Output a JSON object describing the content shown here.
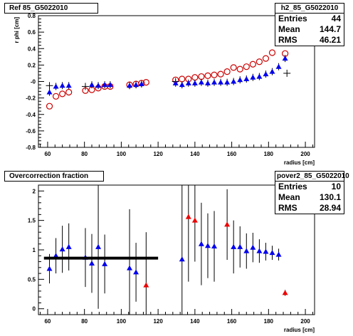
{
  "top_panel": {
    "title": "Ref 85_G5022010",
    "stats": {
      "name": "h2_85_G5022010",
      "rows": [
        {
          "label": "Entries",
          "value": "44"
        },
        {
          "label": "Mean",
          "value": "144.7"
        },
        {
          "label": "RMS",
          "value": "46.21"
        }
      ]
    }
  },
  "bottom_panel": {
    "title": "Overcorrection fraction",
    "stats": {
      "name": "pover2_85_G5022010",
      "rows": [
        {
          "label": "Entries",
          "value": "10"
        },
        {
          "label": "Mean",
          "value": "130.1"
        },
        {
          "label": "RMS",
          "value": "28.94"
        }
      ]
    }
  },
  "colors": {
    "circles": "#cc0000",
    "blue": "#0000ee",
    "red": "#ee0000",
    "line": "#000000"
  },
  "chart_data": [
    {
      "type": "scatter",
      "title": "Ref 85_G5022010",
      "xlabel": "radius [cm]",
      "ylabel": "r phi [cm]",
      "xlim": [
        55,
        205
      ],
      "ylim": [
        -0.8,
        0.8
      ],
      "xticks": [
        60,
        80,
        100,
        120,
        140,
        160,
        180,
        200
      ],
      "yticks": [
        -0.8,
        -0.6,
        -0.4,
        -0.2,
        0,
        0.2,
        0.4,
        0.6,
        0.8
      ],
      "tick_labels_x": [
        "60",
        "80",
        "100",
        "120",
        "140",
        "160",
        "180",
        "200"
      ],
      "tick_labels_y": [
        "-0.8",
        "-0.6",
        "-0.4",
        "-0.2",
        "-0",
        "0.2",
        "0.4",
        "0.6",
        "0.8"
      ],
      "series": [
        {
          "marker": "open-circle",
          "x": [
            61,
            64.5,
            68,
            71.5,
            80.5,
            84,
            87.5,
            91,
            94,
            104.5,
            108,
            111,
            113.5,
            129.5,
            133,
            136.5,
            140,
            143.5,
            147,
            150.5,
            154,
            157.5,
            161,
            164.5,
            168,
            171.5,
            175,
            178.5,
            182,
            185.5,
            189
          ],
          "y": [
            -0.3,
            -0.18,
            -0.15,
            -0.13,
            -0.11,
            -0.1,
            -0.08,
            -0.06,
            -0.06,
            -0.04,
            -0.03,
            -0.02,
            -0.01,
            0.02,
            0.03,
            0.03,
            0.05,
            0.06,
            0.07,
            0.08,
            0.09,
            0.12,
            0.17,
            0.15,
            0.18,
            0.21,
            0.24,
            0.28,
            0.35,
            0.49,
            0.34
          ]
        },
        {
          "marker": "triangle",
          "x": [
            61,
            64.5,
            68,
            71.5,
            84,
            87.5,
            91,
            94,
            104.5,
            108,
            111,
            129.5,
            133,
            136.5,
            140,
            143.5,
            147,
            150.5,
            154,
            157.5,
            161,
            164.5,
            168,
            171.5,
            175,
            178.5,
            182,
            185.5,
            189
          ],
          "y": [
            -0.13,
            -0.06,
            -0.05,
            -0.05,
            -0.04,
            -0.05,
            -0.04,
            -0.04,
            -0.05,
            -0.04,
            -0.03,
            -0.02,
            -0.04,
            -0.02,
            -0.02,
            -0.01,
            -0.02,
            -0.01,
            -0.01,
            -0.01,
            0.0,
            0.02,
            0.03,
            0.05,
            0.06,
            0.09,
            0.12,
            0.18,
            0.28
          ]
        },
        {
          "marker": "cross",
          "x": [
            61,
            80.5,
            129.5,
            190
          ],
          "y": [
            -0.05,
            -0.06,
            0.0,
            0.1
          ]
        }
      ]
    },
    {
      "type": "scatter",
      "title": "Overcorrection fraction",
      "xlabel": "radius [cm]",
      "xlim": [
        55,
        205
      ],
      "ylim": [
        -0.1,
        2.1
      ],
      "xticks": [
        60,
        80,
        100,
        120,
        140,
        160,
        180,
        200
      ],
      "yticks": [
        0,
        0.5,
        1,
        1.5,
        2
      ],
      "tick_labels_x": [
        "60",
        "80",
        "100",
        "120",
        "140",
        "160",
        "180",
        "200"
      ],
      "tick_labels_y": [
        "0",
        "0.5",
        "1",
        "1.5",
        "2"
      ],
      "hline": {
        "y": 0.86,
        "x": [
          58,
          120
        ]
      },
      "series": [
        {
          "marker": "triangle",
          "color": "blue",
          "x": [
            61,
            64.5,
            68,
            71.5,
            80.5,
            84,
            87.5,
            91,
            104.5,
            108,
            133,
            143.5,
            147,
            150.5,
            161,
            164.5,
            168,
            171.5,
            175,
            178.5,
            182,
            185.5
          ],
          "y": [
            0.68,
            0.9,
            1.01,
            1.05,
            0.87,
            0.77,
            1.05,
            0.76,
            0.69,
            0.62,
            0.84,
            1.1,
            1.07,
            1.06,
            1.05,
            1.05,
            0.98,
            1.04,
            0.98,
            0.97,
            0.95,
            0.92
          ],
          "err": [
            0.25,
            0.3,
            0.4,
            0.4,
            0.5,
            0.5,
            1.05,
            0.5,
            1.0,
            0.5,
            1.3,
            0.7,
            0.55,
            0.6,
            0.45,
            0.35,
            0.3,
            0.25,
            0.2,
            0.15,
            0.12,
            0.1
          ]
        },
        {
          "marker": "triangle",
          "color": "red",
          "x": [
            113.5,
            136.5,
            140,
            157.5,
            189
          ],
          "y": [
            0.4,
            1.56,
            1.5,
            1.43,
            0.27
          ],
          "err": [
            0.9,
            1.1,
            0.7,
            0.6,
            0.05
          ]
        }
      ]
    }
  ]
}
